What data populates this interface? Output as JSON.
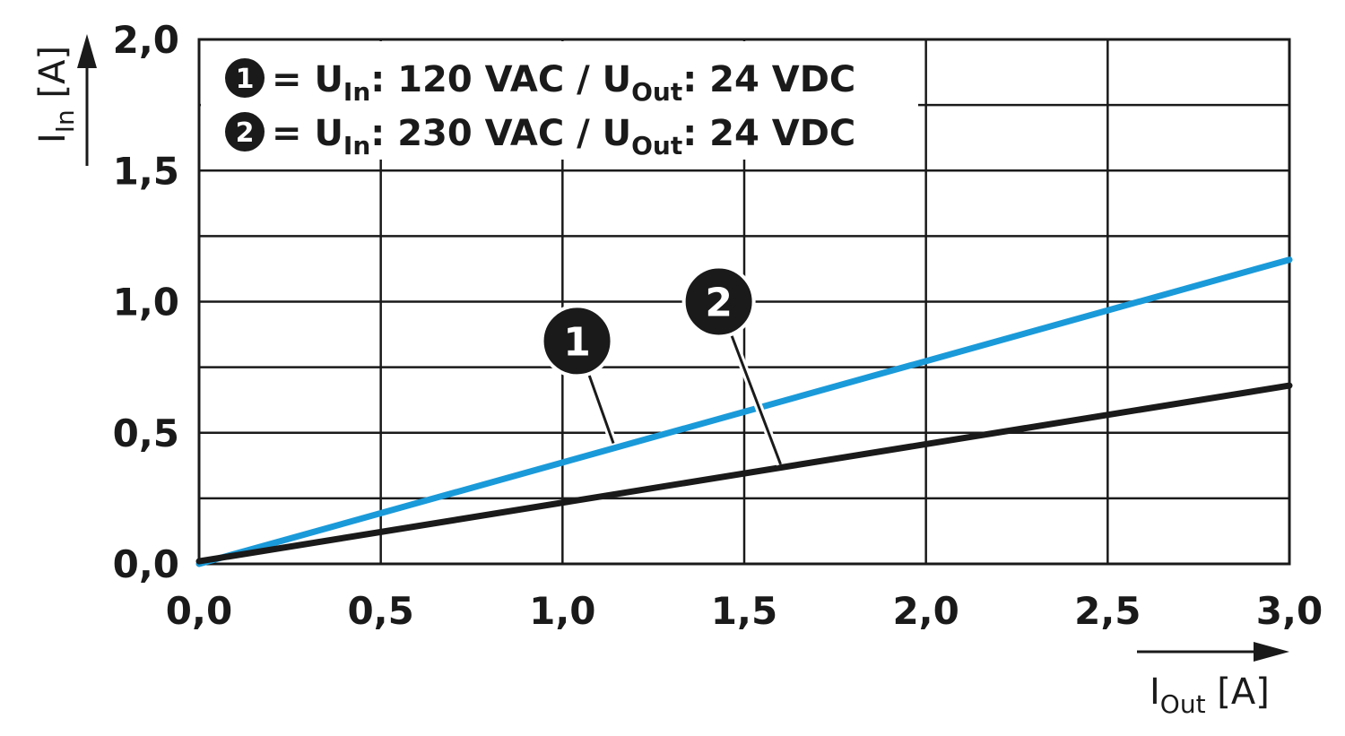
{
  "chart_data": {
    "type": "line",
    "xlabel": {
      "main": "I",
      "sub": "Out",
      "unit": " [A]"
    },
    "ylabel": {
      "main": "I",
      "sub": "In",
      "unit": " [A]"
    },
    "xlim": [
      0.0,
      3.0
    ],
    "ylim": [
      0.0,
      2.0
    ],
    "x_ticks": [
      0.0,
      0.5,
      1.0,
      1.5,
      2.0,
      2.5,
      3.0
    ],
    "x_tick_labels": [
      "0,0",
      "0,5",
      "1,0",
      "1,5",
      "2,0",
      "2,5",
      "3,0"
    ],
    "y_ticks": [
      0.0,
      0.5,
      1.0,
      1.5,
      2.0
    ],
    "y_tick_labels": [
      "0,0",
      "0,5",
      "1,0",
      "1,5",
      "2,0"
    ],
    "grid": {
      "x_major": 0.5,
      "y_minor": 0.25,
      "on": true
    },
    "legend_placement": "top-left",
    "legend": [
      {
        "marker": "1",
        "eq": " = U",
        "sub1": "In",
        "mid": ": 120 VAC / U",
        "sub2": "Out",
        "end": ": 24 VDC"
      },
      {
        "marker": "2",
        "eq": " = U",
        "sub1": "In",
        "mid": ": 230 VAC / U",
        "sub2": "Out",
        "end": ": 24 VDC"
      }
    ],
    "series": [
      {
        "marker": "1",
        "color": "#1a9ad9",
        "x": [
          0.0,
          3.0
        ],
        "y": [
          0.0,
          1.16
        ]
      },
      {
        "marker": "2",
        "color": "#1a1a1a",
        "x": [
          0.0,
          3.0
        ],
        "y": [
          0.01,
          0.68
        ]
      }
    ],
    "callouts": [
      {
        "marker": "1",
        "badge": [
          1.04,
          0.85
        ],
        "target": [
          1.14,
          0.46
        ]
      },
      {
        "marker": "2",
        "badge": [
          1.43,
          1.0
        ],
        "target": [
          1.6,
          0.38
        ]
      }
    ]
  }
}
